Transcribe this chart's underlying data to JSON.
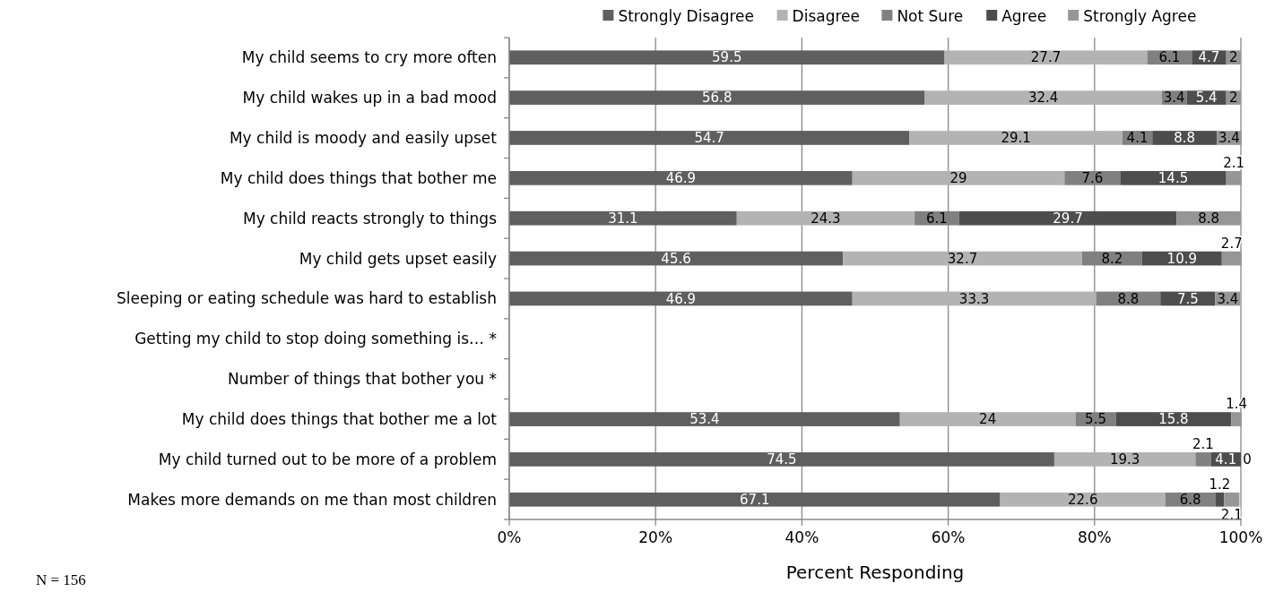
{
  "chart_data": {
    "type": "bar",
    "orientation": "horizontal",
    "stacked": true,
    "data_labels": true,
    "grid": "x",
    "legend": "top",
    "xlabel": "Percent Responding",
    "annotations": [
      "N = 156"
    ],
    "categories": [
      "My child seems to cry more often",
      "My child wakes up in a bad mood",
      "My child is moody and easily upset",
      "My child does things that bother me",
      "My child reacts strongly to things",
      "My child gets upset easily",
      "Sleeping or eating schedule was hard to establish",
      "Getting my child to stop doing something is… *",
      "Number of things that bother you *",
      "My child does things that bother me a lot",
      "My child turned out to be more of a problem",
      "Makes more demands on me than most children"
    ],
    "xlim": [
      0,
      100
    ],
    "xticks": [
      {
        "value": 0,
        "label": "0%"
      },
      {
        "value": 20,
        "label": "20%"
      },
      {
        "value": 40,
        "label": "40%"
      },
      {
        "value": 60,
        "label": "60%"
      },
      {
        "value": 80,
        "label": "80%"
      },
      {
        "value": 100,
        "label": "100%"
      }
    ],
    "series": [
      {
        "name": "Strongly Disagree",
        "color": "#5f5f5f",
        "values": [
          59.5,
          56.8,
          54.7,
          46.9,
          31.1,
          45.6,
          46.9,
          null,
          null,
          53.4,
          74.5,
          67.1
        ]
      },
      {
        "name": "Disagree",
        "color": "#b3b3b3",
        "values": [
          27.7,
          32.4,
          29.1,
          29,
          24.3,
          32.7,
          33.3,
          null,
          null,
          24,
          19.3,
          22.6
        ]
      },
      {
        "name": "Not Sure",
        "color": "#808080",
        "values": [
          6.1,
          3.4,
          4.1,
          7.6,
          6.1,
          8.2,
          8.8,
          null,
          null,
          5.5,
          2.1,
          6.8
        ]
      },
      {
        "name": "Agree",
        "color": "#4d4d4d",
        "values": [
          4.7,
          5.4,
          8.8,
          14.5,
          29.7,
          10.9,
          7.5,
          null,
          null,
          15.8,
          4.1,
          1.2
        ]
      },
      {
        "name": "Strongly Agree",
        "color": "#969696",
        "values": [
          2,
          2,
          3.4,
          2.1,
          8.8,
          2.7,
          3.4,
          null,
          null,
          1.4,
          0,
          2.1
        ]
      }
    ]
  }
}
